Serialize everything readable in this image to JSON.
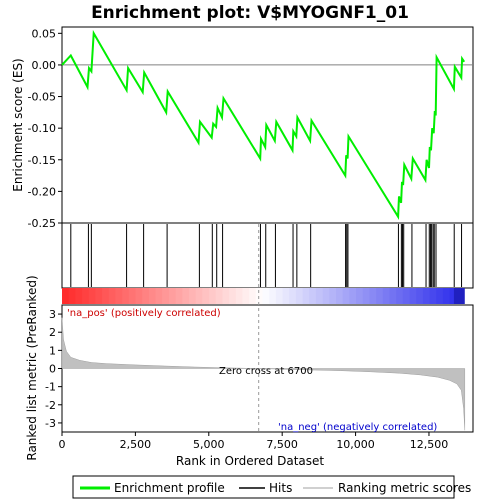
{
  "chart_data": {
    "type": "line",
    "title": "Enrichment plot: V$MYOGNF1_01",
    "top_panel": {
      "ylabel": "Enrichment score (ES)",
      "ylim": [
        -0.25,
        0.06
      ],
      "yticks": [
        0.05,
        0.0,
        -0.05,
        -0.1,
        -0.15,
        -0.2,
        -0.25
      ],
      "ytick_labels": [
        "0.05",
        "0.00",
        "-0.05",
        "-0.10",
        "-0.15",
        "-0.20",
        "-0.25"
      ],
      "grid": false,
      "series": [
        {
          "name": "Enrichment profile",
          "color": "#00ee00",
          "x": [
            0,
            300,
            870,
            920,
            1000,
            1080,
            2200,
            2250,
            2750,
            2800,
            3550,
            3600,
            4650,
            4700,
            5100,
            5150,
            5250,
            5300,
            5450,
            5500,
            6750,
            6780,
            6920,
            6960,
            7250,
            7300,
            7850,
            7880,
            7980,
            8020,
            8450,
            8500,
            9650,
            9680,
            9730,
            9760,
            11450,
            11480,
            11550,
            11580,
            11620,
            11660,
            11900,
            11950,
            12380,
            12420,
            12500,
            12530,
            12570,
            12610,
            12660,
            12700,
            12730,
            12760,
            13350,
            13380,
            13600,
            13630,
            13700
          ],
          "y": [
            0.0,
            0.015,
            -0.035,
            -0.005,
            -0.01,
            0.05,
            -0.04,
            -0.005,
            -0.043,
            -0.012,
            -0.075,
            -0.042,
            -0.123,
            -0.09,
            -0.115,
            -0.093,
            -0.098,
            -0.068,
            -0.083,
            -0.053,
            -0.148,
            -0.117,
            -0.13,
            -0.095,
            -0.12,
            -0.09,
            -0.135,
            -0.105,
            -0.113,
            -0.083,
            -0.12,
            -0.088,
            -0.175,
            -0.143,
            -0.148,
            -0.113,
            -0.24,
            -0.208,
            -0.218,
            -0.185,
            -0.19,
            -0.158,
            -0.18,
            -0.148,
            -0.182,
            -0.15,
            -0.163,
            -0.13,
            -0.135,
            -0.1,
            -0.108,
            -0.073,
            -0.08,
            0.012,
            -0.038,
            -0.003,
            -0.02,
            0.01,
            0.005
          ]
        }
      ]
    },
    "hits": {
      "name": "Hits",
      "positions": [
        300,
        900,
        1000,
        2200,
        2780,
        3580,
        4680,
        5120,
        5270,
        5470,
        6760,
        6940,
        7270,
        7870,
        8000,
        8470,
        9660,
        9700,
        9740,
        11460,
        11560,
        11600,
        11640,
        11920,
        12400,
        12510,
        12550,
        12590,
        12640,
        12680,
        12740,
        13360,
        13610
      ]
    },
    "bottom_panel": {
      "ylabel": "Ranked list metric (PreRanked)",
      "xlabel": "Rank in Ordered Dataset",
      "xlim": [
        0,
        14000
      ],
      "ylim": [
        -3.5,
        3.5
      ],
      "xticks": [
        0,
        2500,
        5000,
        7500,
        10000,
        12500
      ],
      "xtick_labels": [
        "0",
        "2,500",
        "5,000",
        "7,500",
        "10,000",
        "12,500"
      ],
      "yticks": [
        3,
        2,
        1,
        0,
        -1,
        -2,
        -3
      ],
      "ytick_labels": [
        "3",
        "2",
        "1",
        "0",
        "-1",
        "-2",
        "-3"
      ],
      "metric_series": {
        "name": "Ranking metric scores",
        "color": "#c0c0c0",
        "x": [
          0,
          50,
          150,
          300,
          600,
          1000,
          1500,
          2500,
          3500,
          4500,
          5500,
          6700,
          8000,
          9500,
          10500,
          11500,
          12200,
          12800,
          13200,
          13450,
          13600,
          13680,
          13720
        ],
        "y": [
          2.8,
          1.6,
          0.95,
          0.62,
          0.45,
          0.33,
          0.27,
          0.2,
          0.14,
          0.08,
          0.04,
          0.0,
          -0.06,
          -0.12,
          -0.18,
          -0.26,
          -0.35,
          -0.48,
          -0.65,
          -0.85,
          -1.2,
          -2.2,
          -3.4
        ]
      },
      "annotations": {
        "pos_label": "'na_pos' (positively correlated)",
        "neg_label": "'na_neg' (negatively correlated)",
        "zero_cross": "Zero cross at 6700",
        "zero_cross_x": 6700
      }
    },
    "legend": {
      "placement": "bottom",
      "entries": [
        {
          "label": "Enrichment profile",
          "color": "#00ee00",
          "style": "line"
        },
        {
          "label": "Hits",
          "color": "#000000",
          "style": "line"
        },
        {
          "label": "Ranking metric scores",
          "color": "#c0c0c0",
          "style": "line"
        }
      ]
    }
  }
}
